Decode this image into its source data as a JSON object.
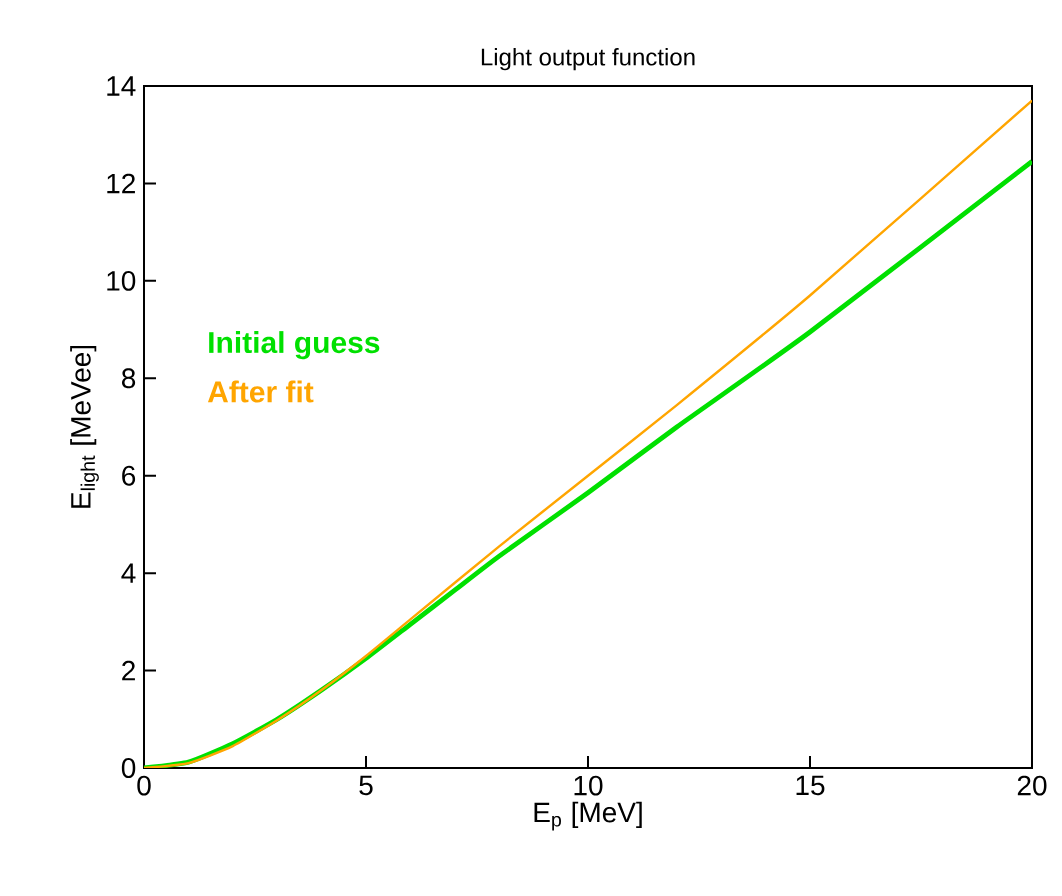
{
  "chart_data": {
    "type": "line",
    "title": "Light output function",
    "xlabel": "E$_{p}$ [MeV]",
    "ylabel": "E$_{light}$ [MeVee]",
    "xlim": [
      0,
      20
    ],
    "ylim": [
      0,
      14
    ],
    "xticks": [
      0,
      5,
      10,
      15,
      20
    ],
    "yticks": [
      0,
      2,
      4,
      6,
      8,
      10,
      12,
      14
    ],
    "grid": false,
    "legend": "left",
    "marker": "none",
    "line_style": "solid",
    "series": [
      {
        "name": "Initial guess",
        "color": "#00e000",
        "x": [
          0,
          1,
          2,
          3,
          4,
          5,
          6,
          7,
          8,
          10,
          12,
          15,
          20
        ],
        "values": [
          0,
          0.12,
          0.5,
          1.0,
          1.6,
          2.25,
          2.95,
          3.65,
          4.35,
          5.65,
          7.0,
          8.95,
          12.45
        ]
      },
      {
        "name": "After fit",
        "color": "#ffa500",
        "x": [
          0,
          1,
          2,
          3,
          4,
          5,
          6,
          8,
          10,
          12,
          15,
          20
        ],
        "values": [
          0,
          0.1,
          0.45,
          0.98,
          1.6,
          2.3,
          3.05,
          4.55,
          6.0,
          7.45,
          9.7,
          13.7
        ]
      }
    ]
  }
}
